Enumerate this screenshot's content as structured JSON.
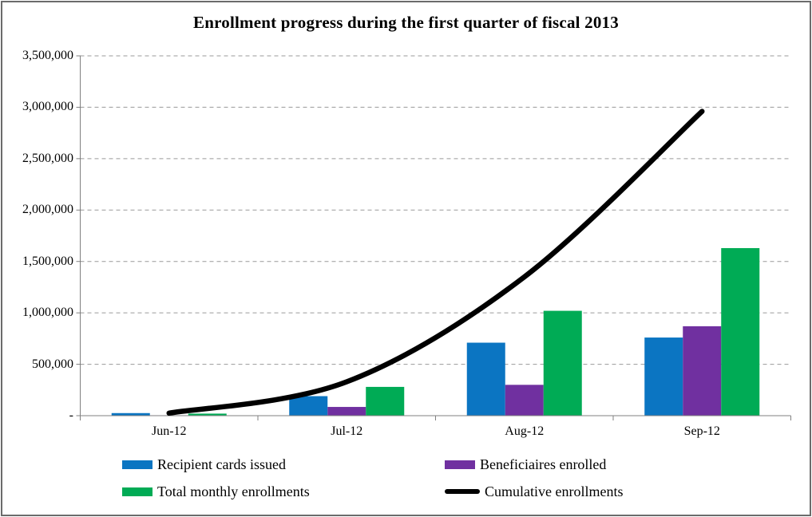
{
  "window": {
    "background": "#ffffff",
    "border_color": "#6b6b6b"
  },
  "chart_data": {
    "type": "bar",
    "subtype": "grouped-bars-with-smooth-line",
    "title": "Enrollment progress during the first quarter of fiscal 2013",
    "categories": [
      "Jun-12",
      "Jul-12",
      "Aug-12",
      "Sep-12"
    ],
    "series": [
      {
        "name": "Recipient cards issued",
        "kind": "bar",
        "color": "#0b75c2",
        "values": [
          25000,
          190000,
          710000,
          760000
        ]
      },
      {
        "name": "Beneficiaires enrolled",
        "kind": "bar",
        "color": "#7030a0",
        "values": [
          4000,
          85000,
          300000,
          870000
        ]
      },
      {
        "name": "Total monthly enrollments",
        "kind": "bar",
        "color": "#00ab55",
        "values": [
          20000,
          280000,
          1020000,
          1630000
        ]
      },
      {
        "name": "Cumulative enrollments",
        "kind": "line",
        "color": "#000000",
        "smooth": true,
        "values": [
          25000,
          330000,
          1350000,
          2960000
        ]
      }
    ],
    "xlabel": "",
    "ylabel": "",
    "y_axis": {
      "min": 0,
      "max": 3500000,
      "tick_interval": 500000,
      "tick_labels_bottom_up": [
        "-",
        "500,000",
        "1,000,000",
        "1,500,000",
        "2,000,000",
        "2,500,000",
        "3,000,000",
        "3,500,000"
      ]
    },
    "grid": {
      "visible": true,
      "style": "dashed",
      "color": "#9a9a9a"
    },
    "axis_color": "#808080",
    "legend_position": "bottom-two-columns"
  }
}
